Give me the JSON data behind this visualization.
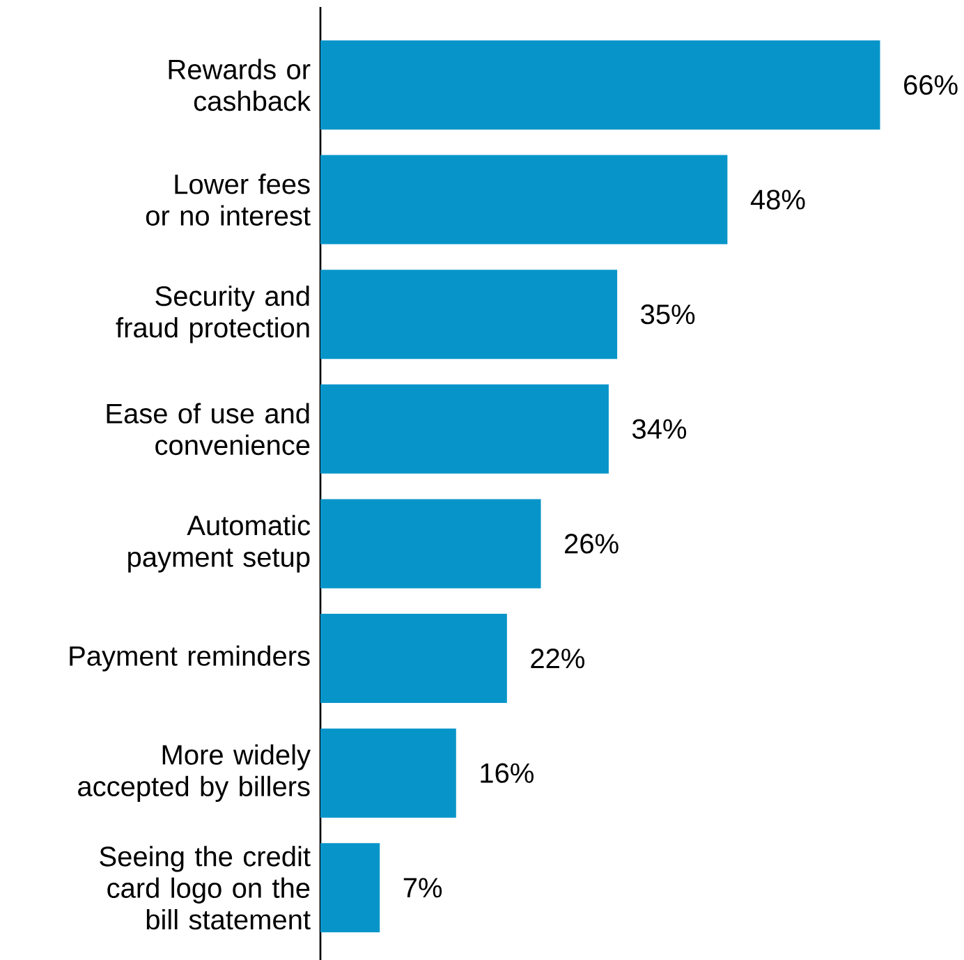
{
  "chart_data": {
    "type": "bar",
    "orientation": "horizontal",
    "tick_labels": "y",
    "categories": [
      "Rewards or cashback",
      "Lower fees or no interest",
      "Security and fraud protection",
      "Ease of use and convenience",
      "Automatic payment setup",
      "Payment reminders",
      "More widely accepted by billers",
      "Seeing the credit card logo on the bill statement"
    ],
    "values": [
      66,
      48,
      35,
      34,
      26,
      22,
      16,
      7
    ],
    "value_labels": [
      "66%",
      "48%",
      "35%",
      "34%",
      "26%",
      "22%",
      "16%",
      "7%"
    ],
    "color": "#0795c9"
  }
}
